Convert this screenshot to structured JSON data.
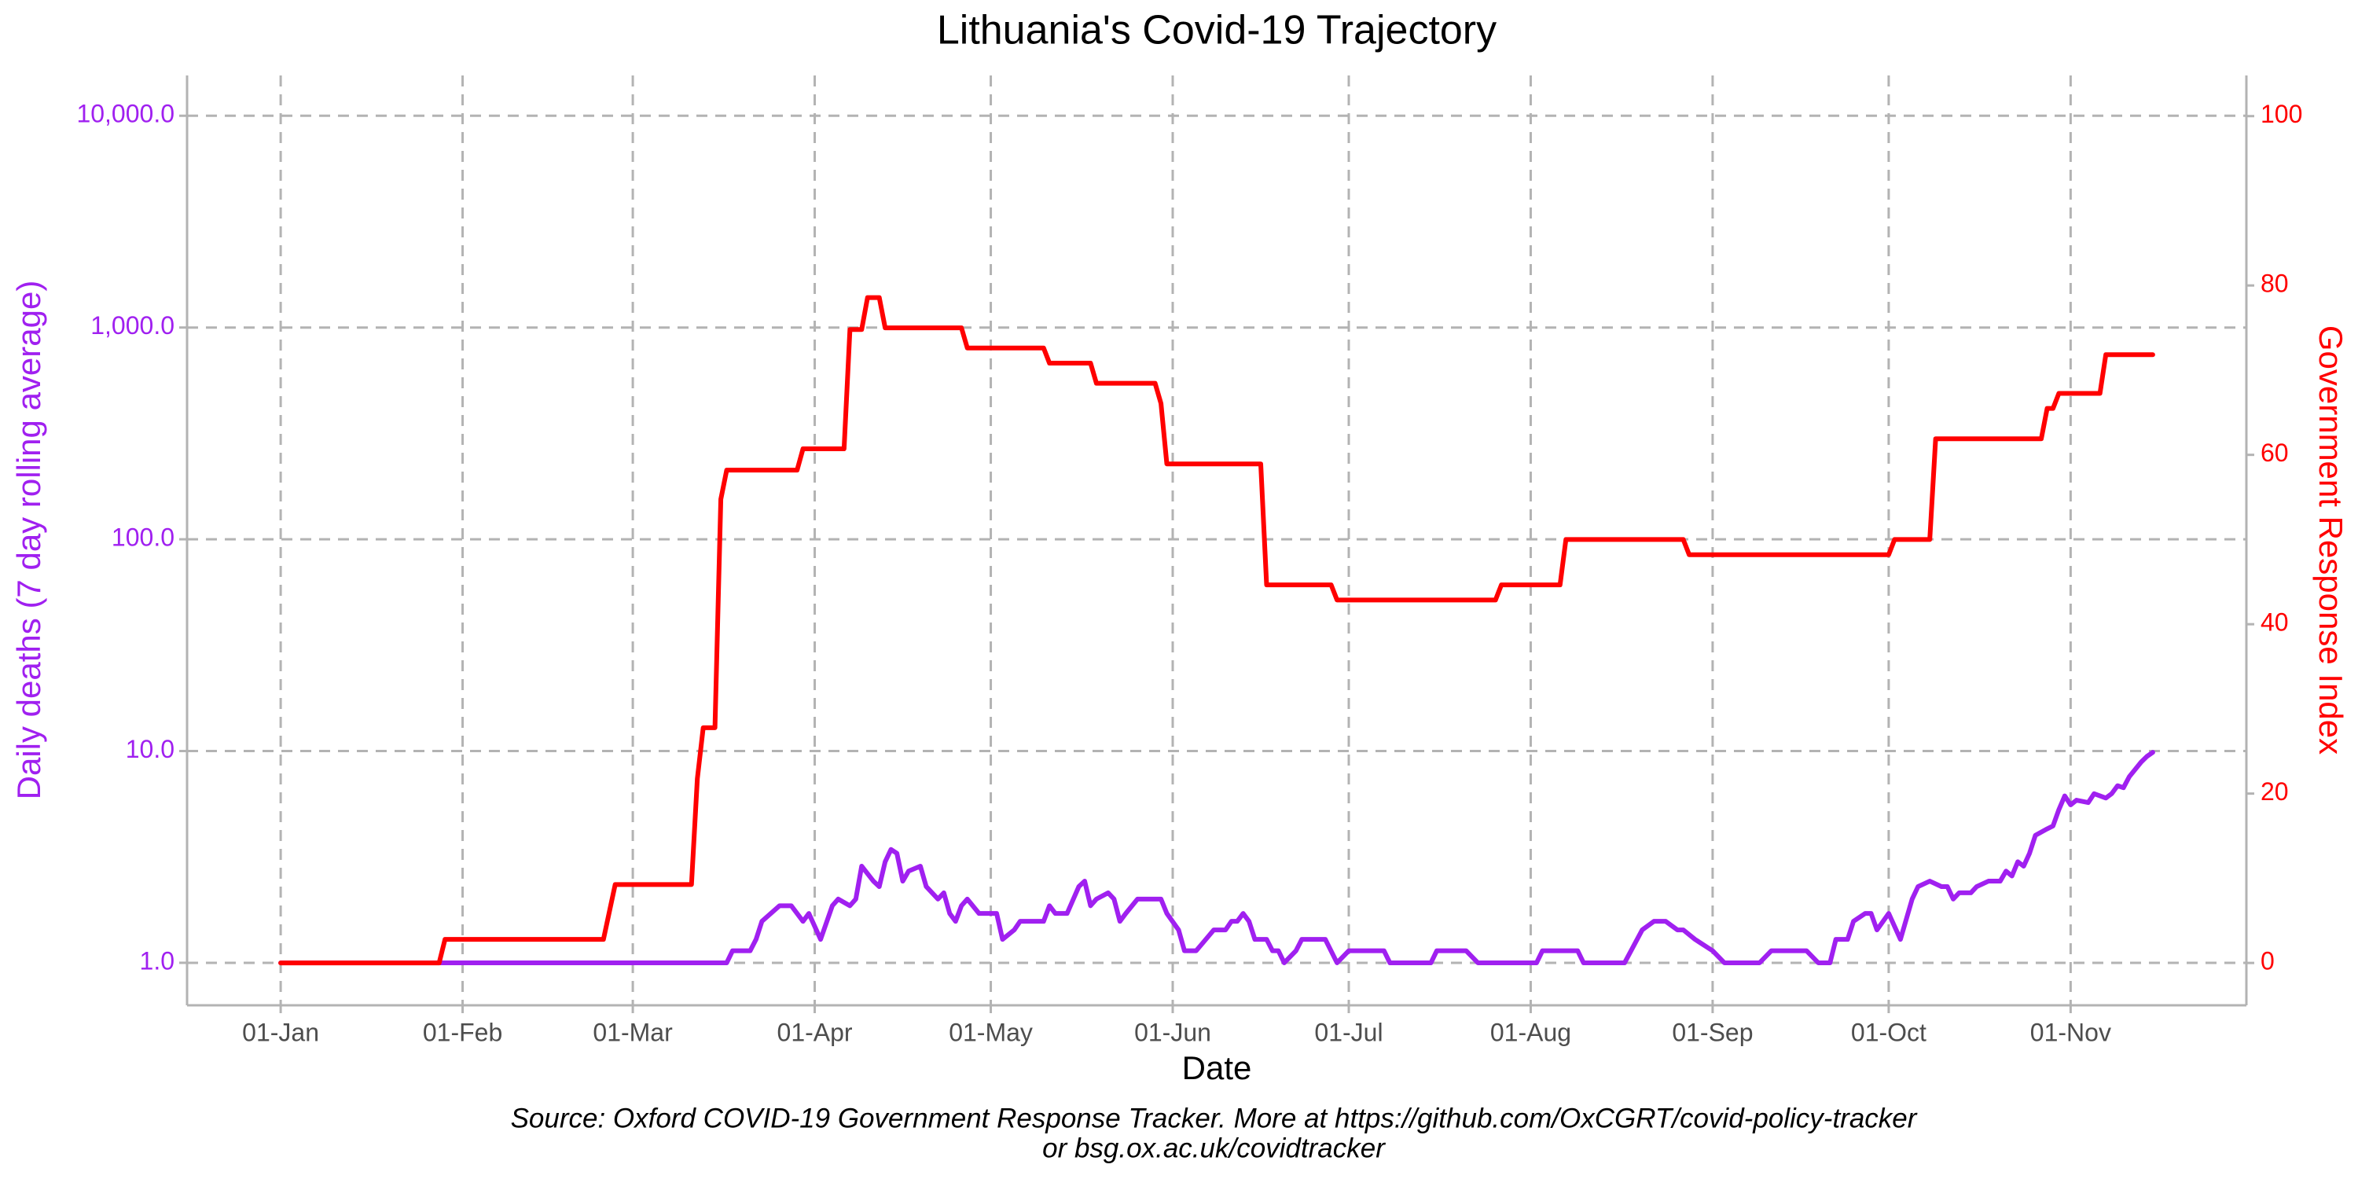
{
  "chart_data": {
    "type": "line",
    "title": "Lithuania's Covid-19 Trajectory",
    "xlabel": "Date",
    "ylabel": "Daily deaths (7 day rolling average)",
    "y2label": "Government Response Index",
    "caption": [
      "Source: Oxford COVID-19 Government Response Tracker. More at https://github.com/OxCGRT/covid-policy-tracker",
      "or bsg.ox.ac.uk/covidtracker"
    ],
    "xticks": [
      "01-Jan",
      "01-Feb",
      "01-Mar",
      "01-Apr",
      "01-May",
      "01-Jun",
      "01-Jul",
      "01-Aug",
      "01-Sep",
      "01-Oct",
      "01-Nov"
    ],
    "yscale": "log",
    "ylim": [
      0.63,
      15500
    ],
    "yticks": [
      {
        "value": 1,
        "label": "1.0"
      },
      {
        "value": 10,
        "label": "10.0"
      },
      {
        "value": 100,
        "label": "100.0"
      },
      {
        "value": 1000,
        "label": "1,000.0"
      },
      {
        "value": 10000,
        "label": "10,000.0"
      }
    ],
    "y2lim": [
      -5,
      104.8
    ],
    "y2ticks": [
      0,
      20,
      40,
      60,
      80,
      100
    ],
    "grid": true,
    "ycolor": "#a020f0",
    "y2color": "#ff0000",
    "series": [
      {
        "color": "#a020f0",
        "axis": "y",
        "x": [
          "01-Jan",
          "17-Mar",
          "18-Mar",
          "21-Mar",
          "22-Mar",
          "23-Mar",
          "26-Mar",
          "28-Mar",
          "29-Mar",
          "30-Mar",
          "31-Mar",
          "02-Apr",
          "04-Apr",
          "05-Apr",
          "07-Apr",
          "08-Apr",
          "09-Apr",
          "11-Apr",
          "12-Apr",
          "13-Apr",
          "14-Apr",
          "15-Apr",
          "16-Apr",
          "17-Apr",
          "19-Apr",
          "20-Apr",
          "22-Apr",
          "23-Apr",
          "24-Apr",
          "25-Apr",
          "26-Apr",
          "27-Apr",
          "29-Apr",
          "02-May",
          "03-May",
          "05-May",
          "06-May",
          "10-May",
          "11-May",
          "12-May",
          "14-May",
          "16-May",
          "17-May",
          "18-May",
          "19-May",
          "21-May",
          "22-May",
          "23-May",
          "24-May",
          "26-May",
          "30-May",
          "31-May",
          "02-Jun",
          "03-Jun",
          "05-Jun",
          "08-Jun",
          "10-Jun",
          "11-Jun",
          "12-Jun",
          "13-Jun",
          "14-Jun",
          "15-Jun",
          "17-Jun",
          "18-Jun",
          "19-Jun",
          "20-Jun",
          "22-Jun",
          "23-Jun",
          "27-Jun",
          "29-Jun",
          "01-Jul",
          "07-Jul",
          "08-Jul",
          "15-Jul",
          "16-Jul",
          "21-Jul",
          "23-Jul",
          "02-Aug",
          "03-Aug",
          "09-Aug",
          "10-Aug",
          "17-Aug",
          "20-Aug",
          "22-Aug",
          "24-Aug",
          "26-Aug",
          "27-Aug",
          "29-Aug",
          "01-Sep",
          "03-Sep",
          "09-Sep",
          "11-Sep",
          "17-Sep",
          "19-Sep",
          "21-Sep",
          "22-Sep",
          "24-Sep",
          "25-Sep",
          "27-Sep",
          "28-Sep",
          "29-Sep",
          "01-Oct",
          "03-Oct",
          "05-Oct",
          "06-Oct",
          "08-Oct",
          "10-Oct",
          "11-Oct",
          "12-Oct",
          "13-Oct",
          "15-Oct",
          "16-Oct",
          "18-Oct",
          "20-Oct",
          "21-Oct",
          "22-Oct",
          "23-Oct",
          "24-Oct",
          "25-Oct",
          "26-Oct",
          "28-Oct",
          "29-Oct",
          "30-Oct",
          "31-Oct",
          "01-Nov",
          "02-Nov",
          "04-Nov",
          "05-Nov",
          "07-Nov",
          "08-Nov",
          "09-Nov",
          "10-Nov",
          "11-Nov",
          "13-Nov",
          "14-Nov",
          "15-Nov"
        ],
        "values": [
          1,
          1,
          1.14,
          1.14,
          1.29,
          1.57,
          1.86,
          1.86,
          1.71,
          1.57,
          1.71,
          1.29,
          1.86,
          2.0,
          1.86,
          2.0,
          2.86,
          2.43,
          2.29,
          3.0,
          3.43,
          3.29,
          2.43,
          2.71,
          2.86,
          2.29,
          2.0,
          2.14,
          1.71,
          1.57,
          1.86,
          2.0,
          1.71,
          1.71,
          1.29,
          1.43,
          1.57,
          1.57,
          1.86,
          1.71,
          1.71,
          2.29,
          2.43,
          1.86,
          2.0,
          2.14,
          2.0,
          1.57,
          1.71,
          2.0,
          2.0,
          1.71,
          1.43,
          1.14,
          1.14,
          1.43,
          1.43,
          1.57,
          1.57,
          1.71,
          1.57,
          1.29,
          1.29,
          1.14,
          1.14,
          1.0,
          1.14,
          1.29,
          1.29,
          1.0,
          1.14,
          1.14,
          1.0,
          1.0,
          1.14,
          1.14,
          1.0,
          1.0,
          1.14,
          1.14,
          1.0,
          1.0,
          1.43,
          1.57,
          1.57,
          1.43,
          1.43,
          1.29,
          1.14,
          1.0,
          1.0,
          1.14,
          1.14,
          1.0,
          1.0,
          1.29,
          1.29,
          1.57,
          1.71,
          1.71,
          1.43,
          1.71,
          1.29,
          2.0,
          2.29,
          2.43,
          2.29,
          2.29,
          2.0,
          2.14,
          2.14,
          2.29,
          2.43,
          2.43,
          2.71,
          2.57,
          3.0,
          2.86,
          3.29,
          4.0,
          4.29,
          4.43,
          5.29,
          6.14,
          5.57,
          5.86,
          5.71,
          6.29,
          6.0,
          6.29,
          6.86,
          6.71,
          7.57,
          8.86,
          9.43,
          9.86
        ]
      },
      {
        "color": "#ff0000",
        "axis": "y2",
        "x": [
          "01-Jan",
          "28-Jan",
          "29-Jan",
          "25-Feb",
          "26-Feb",
          "27-Feb",
          "11-Mar",
          "12-Mar",
          "13-Mar",
          "15-Mar",
          "16-Mar",
          "17-Mar",
          "29-Mar",
          "30-Mar",
          "06-Apr",
          "07-Apr",
          "09-Apr",
          "10-Apr",
          "12-Apr",
          "13-Apr",
          "26-Apr",
          "27-Apr",
          "10-May",
          "11-May",
          "18-May",
          "19-May",
          "29-May",
          "30-May",
          "31-May",
          "16-Jun",
          "17-Jun",
          "28-Jun",
          "29-Jun",
          "26-Jul",
          "27-Jul",
          "06-Aug",
          "07-Aug",
          "27-Aug",
          "28-Aug",
          "01-Oct",
          "02-Oct",
          "08-Oct",
          "09-Oct",
          "27-Oct",
          "28-Oct",
          "29-Oct",
          "30-Oct",
          "06-Nov",
          "07-Nov",
          "15-Nov"
        ],
        "values": [
          0,
          0,
          2.78,
          2.78,
          6.02,
          9.26,
          9.26,
          21.76,
          27.78,
          27.78,
          54.76,
          58.2,
          58.2,
          60.71,
          60.71,
          74.8,
          74.8,
          78.57,
          78.57,
          75.0,
          75.0,
          72.62,
          72.62,
          70.83,
          70.83,
          68.45,
          68.45,
          66.07,
          58.93,
          58.93,
          44.64,
          44.64,
          42.86,
          42.86,
          44.64,
          44.64,
          50.0,
          50.0,
          48.21,
          48.21,
          50.0,
          50.0,
          61.9,
          61.9,
          65.48,
          65.48,
          67.26,
          67.26,
          71.83,
          71.83
        ]
      }
    ]
  }
}
